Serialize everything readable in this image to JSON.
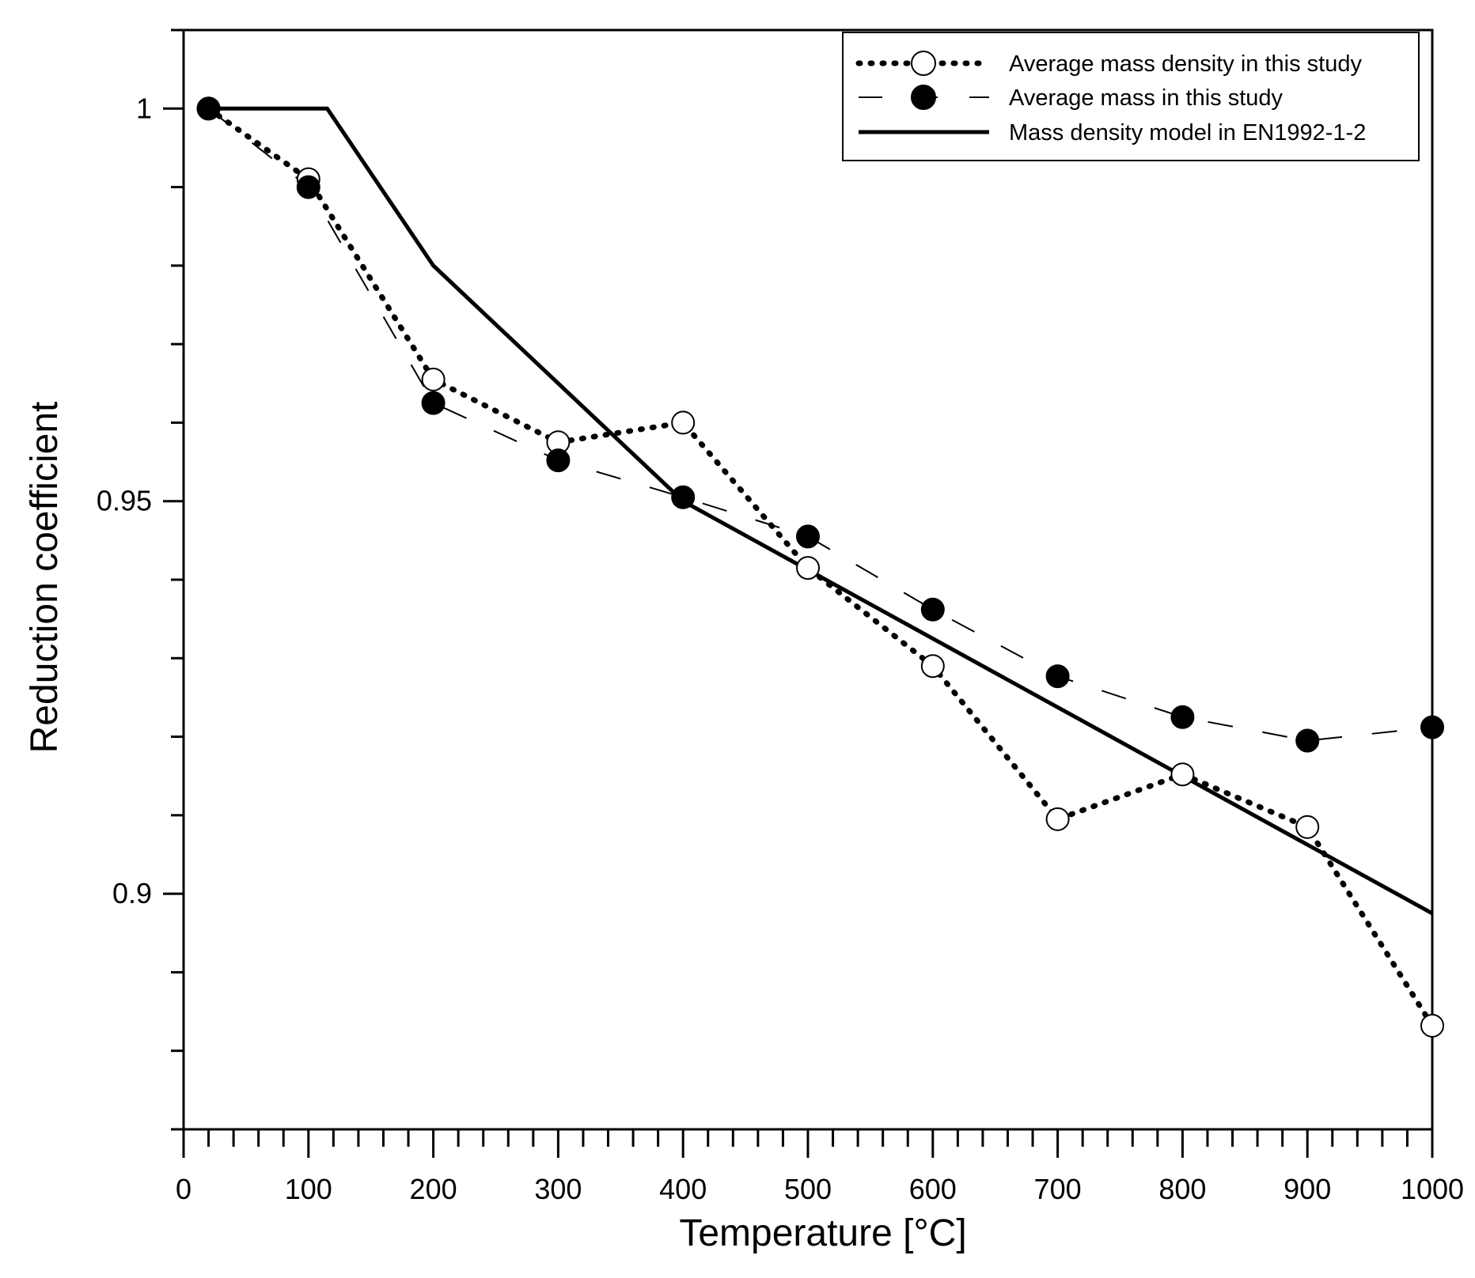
{
  "chart_data": {
    "type": "line",
    "title": "",
    "xlabel": "Temperature [°C]",
    "ylabel": "Reduction coefficient",
    "xlim": [
      0,
      1000
    ],
    "ylim": [
      0.87,
      1.01
    ],
    "xticks": [
      0,
      100,
      200,
      300,
      400,
      500,
      600,
      700,
      800,
      900,
      1000
    ],
    "xtick_labels": [
      "0",
      "100",
      "200",
      "300",
      "400",
      "500",
      "600",
      "700",
      "800",
      "900",
      "1000"
    ],
    "yticks": [
      0.9,
      0.95,
      1.0
    ],
    "ytick_labels": [
      "0.9",
      "0.95",
      "1"
    ],
    "grid": false,
    "legend_position": "top-right",
    "series": [
      {
        "name": "Average mass density in this study",
        "line_style": "dotted",
        "marker": "open-circle",
        "x": [
          20,
          100,
          200,
          300,
          400,
          500,
          600,
          700,
          800,
          900,
          1000
        ],
        "y": [
          1.0,
          0.991,
          0.9655,
          0.9575,
          0.96,
          0.9415,
          0.929,
          0.9095,
          0.9152,
          0.9085,
          0.8832
        ]
      },
      {
        "name": "Average mass in this study",
        "line_style": "dashed",
        "marker": "filled-circle",
        "x": [
          20,
          100,
          200,
          300,
          400,
          500,
          600,
          700,
          800,
          900,
          1000
        ],
        "y": [
          1.0,
          0.99,
          0.9625,
          0.9552,
          0.9505,
          0.9455,
          0.9362,
          0.9277,
          0.9225,
          0.9195,
          0.9212
        ]
      },
      {
        "name": "Mass density model in EN1992-1-2",
        "line_style": "solid",
        "marker": "none",
        "x": [
          20,
          115,
          200,
          400,
          1000
        ],
        "y": [
          1.0,
          1.0,
          0.98,
          0.95,
          0.8975
        ]
      }
    ]
  }
}
